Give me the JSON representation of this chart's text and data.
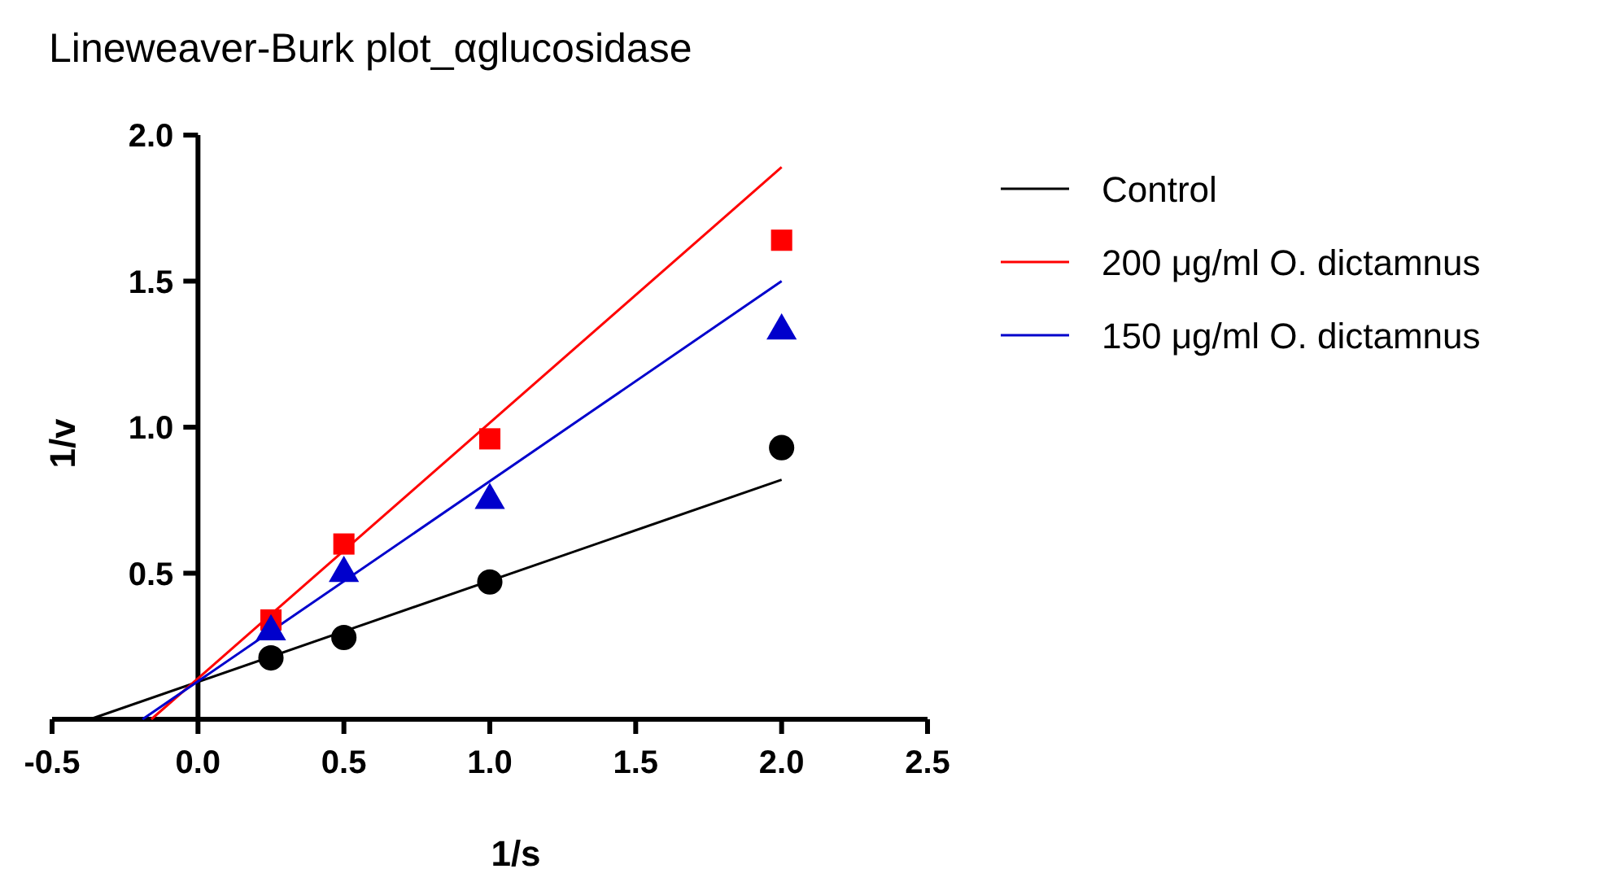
{
  "chart_data": {
    "type": "scatter",
    "title": "Lineweaver-Burk plot_αglucosidase",
    "xlabel": "1/s",
    "ylabel": "1/v",
    "xlim": [
      -0.5,
      2.5
    ],
    "ylim": [
      0,
      2.0
    ],
    "xticks": [
      -0.5,
      {
        "value": 0,
        "label": "0.0"
      },
      0.5,
      {
        "value": 1,
        "label": "1.0"
      },
      1.5,
      {
        "value": 2,
        "label": "2.0"
      },
      2.5
    ],
    "yticks": [
      0.5,
      {
        "value": 1,
        "label": "1.0"
      },
      1.5,
      {
        "value": 2,
        "label": "2.0"
      }
    ],
    "grid": false,
    "legend": "right",
    "x": [
      0.25,
      0.5,
      1,
      2
    ],
    "series": [
      {
        "color": "#000000",
        "marker": "circle",
        "values": [
          0.21,
          0.28,
          0.47,
          0.93
        ]
      },
      {
        "color": "#ff0000",
        "marker": "square",
        "values": [
          0.34,
          0.6,
          0.96,
          1.64
        ]
      },
      {
        "color": "#0000cc",
        "marker": "triangle",
        "values": [
          0.3,
          0.5,
          0.75,
          1.33
        ]
      },
      {
        "type": "line",
        "name": "Control",
        "color": "#000000",
        "marker": "none",
        "x": [
          -0.37,
          2
        ],
        "values": [
          0,
          0.82
        ]
      },
      {
        "type": "line",
        "name": "200 μg/ml O. dictamnus",
        "color": "#ff0000",
        "marker": "none",
        "x": [
          -0.16,
          2
        ],
        "values": [
          0,
          1.89
        ]
      },
      {
        "type": "line",
        "name": "150 μg/ml O. dictamnus",
        "color": "#0000cc",
        "marker": "none",
        "x": [
          -0.19,
          2
        ],
        "values": [
          0,
          1.5
        ]
      }
    ]
  }
}
